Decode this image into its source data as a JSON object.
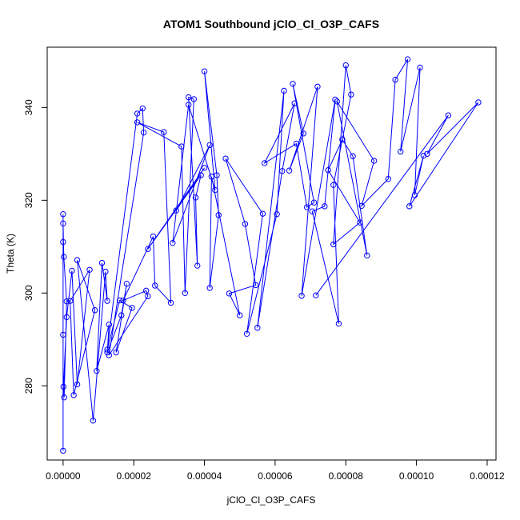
{
  "chart_data": {
    "type": "line",
    "title": "ATOM1 Southbound jClO_Cl_O3P_CAFS",
    "xlabel": "jClO_Cl_O3P_CAFS",
    "ylabel": "Theta (K)",
    "xlim": [
      -4.5e-06,
      0.0001225
    ],
    "ylim": [
      264,
      353
    ],
    "xticks": [
      0,
      2e-05,
      4e-05,
      6e-05,
      8e-05,
      0.0001,
      0.00012
    ],
    "xtick_labels": [
      "0.00000",
      "0.00002",
      "0.00004",
      "0.00006",
      "0.00008",
      "0.00010",
      "0.00012"
    ],
    "yticks": [
      280,
      300,
      320,
      340
    ],
    "ytick_labels": [
      "280",
      "300",
      "320",
      "340"
    ],
    "grid": false,
    "color": "#0000ff",
    "markers": "open-circle",
    "series": [
      {
        "x": [
          0,
          0,
          0,
          0,
          0,
          2e-07,
          1e-06,
          3e-07,
          1e-07,
          1e-06,
          2.5e-06,
          4e-06,
          7.5e-06,
          2e-06,
          3e-06,
          9e-06,
          4e-06,
          8.5e-06,
          1.2e-05,
          1.25e-05,
          1.1e-05,
          9.5e-06,
          1.3e-05,
          1.25e-05,
          1.65e-05,
          1.8e-05,
          1.5e-05,
          1.95e-05,
          1.6e-05,
          1.25e-05,
          2.1e-05,
          2.25e-05,
          2.28e-05,
          1.3e-05,
          2.4e-05,
          2.35e-05,
          1.7e-05,
          2.55e-05,
          2.6e-05,
          3.05e-05,
          2.85e-05,
          2.1e-05,
          3.35e-05,
          3.45e-05,
          3.7e-05,
          3.55e-05,
          3.8e-05,
          3.75e-05,
          3.9e-05,
          2.4e-05,
          4e-05,
          3.2e-05,
          4.15e-05,
          3.1e-05,
          3.55e-05,
          4.3e-05,
          4e-05,
          4.35e-05,
          4.4e-05,
          4.15e-05,
          4.2e-05,
          5e-05,
          4.7e-05,
          5.45e-05,
          5.15e-05,
          4.6e-05,
          5.65e-05,
          5.2e-05,
          6.05e-05,
          6.25e-05,
          5.5e-05,
          6.2e-05,
          6.55e-05,
          5.7e-05,
          6.6e-05,
          6.9e-05,
          7.1e-05,
          6.5e-05,
          6.8e-05,
          6.4e-05,
          7.2e-05,
          6.75e-05,
          7.7e-05,
          7.4e-05,
          7.05e-05,
          7.8e-05,
          7.65e-05,
          8.15e-05,
          8e-05,
          7.65e-05,
          8.4e-05,
          7.5e-05,
          7.9e-05,
          8.2e-05,
          8.6e-05,
          7.75e-05,
          8.8e-05,
          8.45e-05,
          9.2e-05,
          9.4e-05,
          9.75e-05,
          9.55e-05,
          0.000101,
          9.95e-05,
          0.000102,
          9.8e-05,
          0.0001175,
          0.000103,
          0.000109,
          7.15e-05
        ],
        "y": [
          266,
          291,
          317,
          311,
          315,
          307.8,
          298.2,
          277.5,
          279.8,
          294.8,
          304.8,
          280.3,
          305,
          298.3,
          278,
          296.3,
          307.1,
          272.5,
          304.6,
          298.3,
          306.5,
          283.2,
          293.2,
          287.2,
          295.2,
          302,
          287.2,
          296.8,
          298.4,
          287.8,
          338.7,
          339.8,
          334.6,
          286.6,
          299.3,
          300.5,
          298.4,
          312.2,
          301.6,
          297.9,
          334.7,
          336.8,
          331.6,
          300,
          341.8,
          342.2,
          305.9,
          320.6,
          325.4,
          309.5,
          327,
          317.8,
          331.9,
          310.8,
          340.6,
          322.2,
          347.8,
          325.4,
          316.8,
          301.1,
          325.1,
          295.2,
          299.9,
          301.7,
          314.9,
          329,
          317.1,
          291.2,
          317,
          343.6,
          292.5,
          326.3,
          340.9,
          328,
          332.2,
          318.5,
          319.5,
          345.1,
          334.4,
          326.4,
          344.5,
          299.4,
          341.7,
          318.7,
          317.6,
          293.4,
          323.3,
          342.8,
          349.1,
          310.5,
          315.2,
          326.5,
          333.1,
          329.5,
          308.1,
          341.3,
          328.5,
          318.8,
          324.6,
          346,
          350.4,
          330.5,
          348.6,
          321.1,
          329.6,
          318.7,
          341.1,
          330,
          338.3,
          299.5
        ]
      }
    ]
  }
}
